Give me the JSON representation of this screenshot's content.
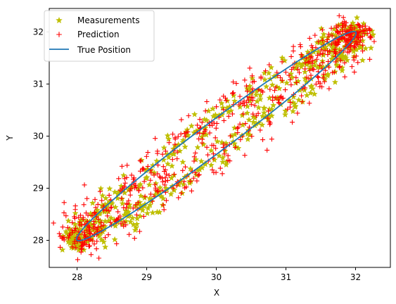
{
  "chart_data": {
    "type": "scatter",
    "title": "",
    "xlabel": "X",
    "ylabel": "Y",
    "xlim": [
      27.6,
      32.5
    ],
    "ylim": [
      27.48,
      32.45
    ],
    "xticks": [
      28,
      29,
      30,
      31,
      32
    ],
    "yticks": [
      28,
      29,
      30,
      31,
      32
    ],
    "grid": false,
    "legend_position": "upper-left",
    "legend": [
      "Measurements",
      "Prediction",
      "True Position"
    ],
    "colors": {
      "measurements": "#bfbf00",
      "prediction": "#ff0000",
      "true_position": "#1f77b4"
    },
    "series": [
      {
        "name": "True Position",
        "kind": "line",
        "shape": "ellipse",
        "center": [
          30.0,
          30.0
        ],
        "major_axis_endpoints": [
          [
            28.0,
            28.0
          ],
          [
            32.0,
            32.0
          ]
        ],
        "half_width_perpendicular": 0.25
      },
      {
        "name": "Measurements",
        "kind": "scatter",
        "marker": "star",
        "count": 600,
        "noise_std": 0.12,
        "x_range": [
          27.7,
          32.2
        ],
        "y_range": [
          27.8,
          32.2
        ]
      },
      {
        "name": "Prediction",
        "kind": "scatter",
        "marker": "plus",
        "count": 650,
        "noise_std": 0.16,
        "x_range": [
          27.7,
          32.3
        ],
        "y_range": [
          27.7,
          32.3
        ]
      }
    ]
  }
}
